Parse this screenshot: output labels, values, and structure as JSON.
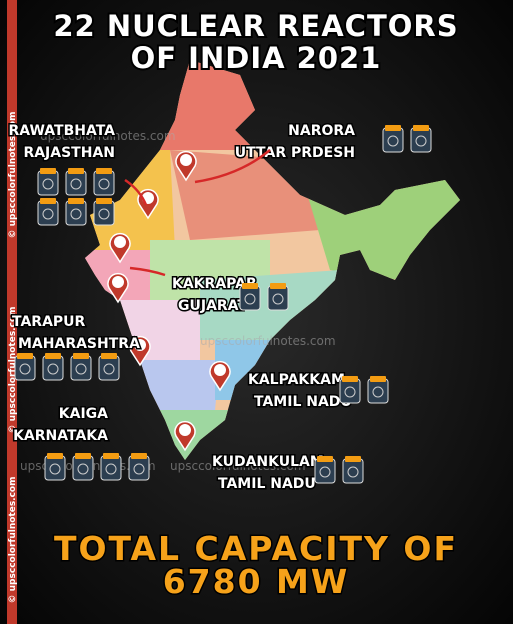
{
  "header": {
    "title_lines": [
      "22 NUCLEAR REACTORS",
      "OF INDIA 2021"
    ]
  },
  "sites": [
    {
      "name": "RAWATBHATA",
      "state": "RAJASTHAN",
      "reactors": 6
    },
    {
      "name": "NARORA",
      "state": "UTTAR PRDESH",
      "reactors": 2
    },
    {
      "name": "KAKRAPAR",
      "state": "GUJARAT",
      "reactors": 2
    },
    {
      "name": "TARAPUR",
      "state": "MAHARASHTRA",
      "reactors": 4
    },
    {
      "name": "KAIGA",
      "state": "KARNATAKA",
      "reactors": 4
    },
    {
      "name": "KALPAKKAM",
      "state": "TAMIL NADU",
      "reactors": 2
    },
    {
      "name": "KUDANKULAM",
      "state": "TAMIL NADU",
      "reactors": 2
    }
  ],
  "footer": {
    "lines": [
      "TOTAL CAPACITY OF",
      "6780 MW"
    ]
  },
  "watermarks": {
    "site": "upsccolorfulnotes.com",
    "side": "© upsccolorfulnotes.com"
  }
}
